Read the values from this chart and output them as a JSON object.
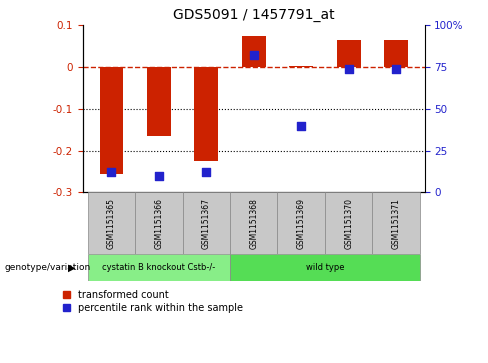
{
  "title": "GDS5091 / 1457791_at",
  "samples": [
    "GSM1151365",
    "GSM1151366",
    "GSM1151367",
    "GSM1151368",
    "GSM1151369",
    "GSM1151370",
    "GSM1151371"
  ],
  "red_values": [
    -0.255,
    -0.165,
    -0.225,
    0.075,
    0.002,
    0.065,
    0.065
  ],
  "blue_percentiles": [
    12,
    10,
    12,
    82,
    40,
    74,
    74
  ],
  "ylim_left": [
    -0.3,
    0.1
  ],
  "ylim_right": [
    0,
    100
  ],
  "yticks_left": [
    -0.3,
    -0.2,
    -0.1,
    0.0,
    0.1
  ],
  "yticks_right": [
    0,
    25,
    50,
    75,
    100
  ],
  "ytick_labels_right": [
    "0",
    "25",
    "50",
    "75",
    "100%"
  ],
  "hline_y": 0,
  "dotted_lines": [
    -0.1,
    -0.2
  ],
  "bar_color": "#CC2200",
  "blue_color": "#2222CC",
  "dashed_color": "#CC2200",
  "groups": [
    {
      "label": "cystatin B knockout Cstb-/-",
      "start": 0,
      "end": 3,
      "color": "#88EE88"
    },
    {
      "label": "wild type",
      "start": 3,
      "end": 7,
      "color": "#55DD55"
    }
  ],
  "group_label": "genotype/variation",
  "legend_red": "transformed count",
  "legend_blue": "percentile rank within the sample",
  "bar_width": 0.5,
  "blue_square_size": 30
}
